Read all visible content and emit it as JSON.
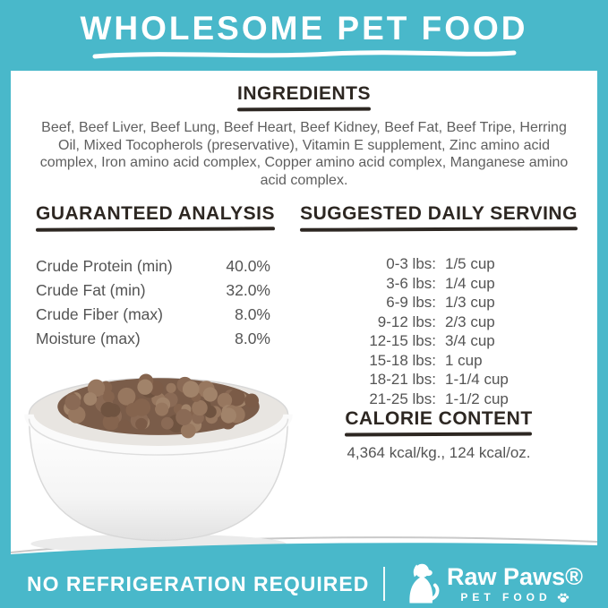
{
  "accent_color": "#49b8ca",
  "header": {
    "title": "WHOLESOME PET FOOD"
  },
  "ingredients": {
    "heading": "INGREDIENTS",
    "text": "Beef, Beef Liver, Beef Lung, Beef Heart, Beef Kidney, Beef Fat, Beef Tripe, Herring Oil, Mixed Tocopherols (preservative), Vitamin E supplement, Zinc amino acid complex, Iron amino acid complex, Copper amino acid complex, Manganese amino acid complex."
  },
  "guaranteed_analysis": {
    "heading": "GUARANTEED ANALYSIS",
    "rows": [
      {
        "label": "Crude Protein (min)",
        "value": "40.0%"
      },
      {
        "label": "Crude Fat (min)",
        "value": "32.0%"
      },
      {
        "label": "Crude Fiber (max)",
        "value": "8.0%"
      },
      {
        "label": "Moisture (max)",
        "value": "8.0%"
      }
    ]
  },
  "daily_serving": {
    "heading": "SUGGESTED DAILY SERVING",
    "rows": [
      {
        "weight": "0-3 lbs:",
        "amount": "1/5 cup"
      },
      {
        "weight": "3-6 lbs:",
        "amount": "1/4 cup"
      },
      {
        "weight": "6-9 lbs:",
        "amount": "1/3 cup"
      },
      {
        "weight": "9-12 lbs:",
        "amount": "2/3 cup"
      },
      {
        "weight": "12-15 lbs:",
        "amount": "3/4 cup"
      },
      {
        "weight": "15-18 lbs:",
        "amount": "1 cup"
      },
      {
        "weight": "18-21 lbs:",
        "amount": "1-1/4 cup"
      },
      {
        "weight": "21-25 lbs:",
        "amount": "1-1/2 cup"
      }
    ]
  },
  "calorie_content": {
    "heading": "CALORIE CONTENT",
    "text": "4,364 kcal/kg., 124 kcal/oz."
  },
  "footer": {
    "note": "NO REFRIGERATION REQUIRED",
    "brand_name": "Raw Paws®",
    "brand_sub": "PET FOOD"
  },
  "bowl": {
    "kibble_colors": [
      "#8a6a55",
      "#7b5b47",
      "#97775f",
      "#6f5340",
      "#a1836a",
      "#85644e"
    ]
  }
}
